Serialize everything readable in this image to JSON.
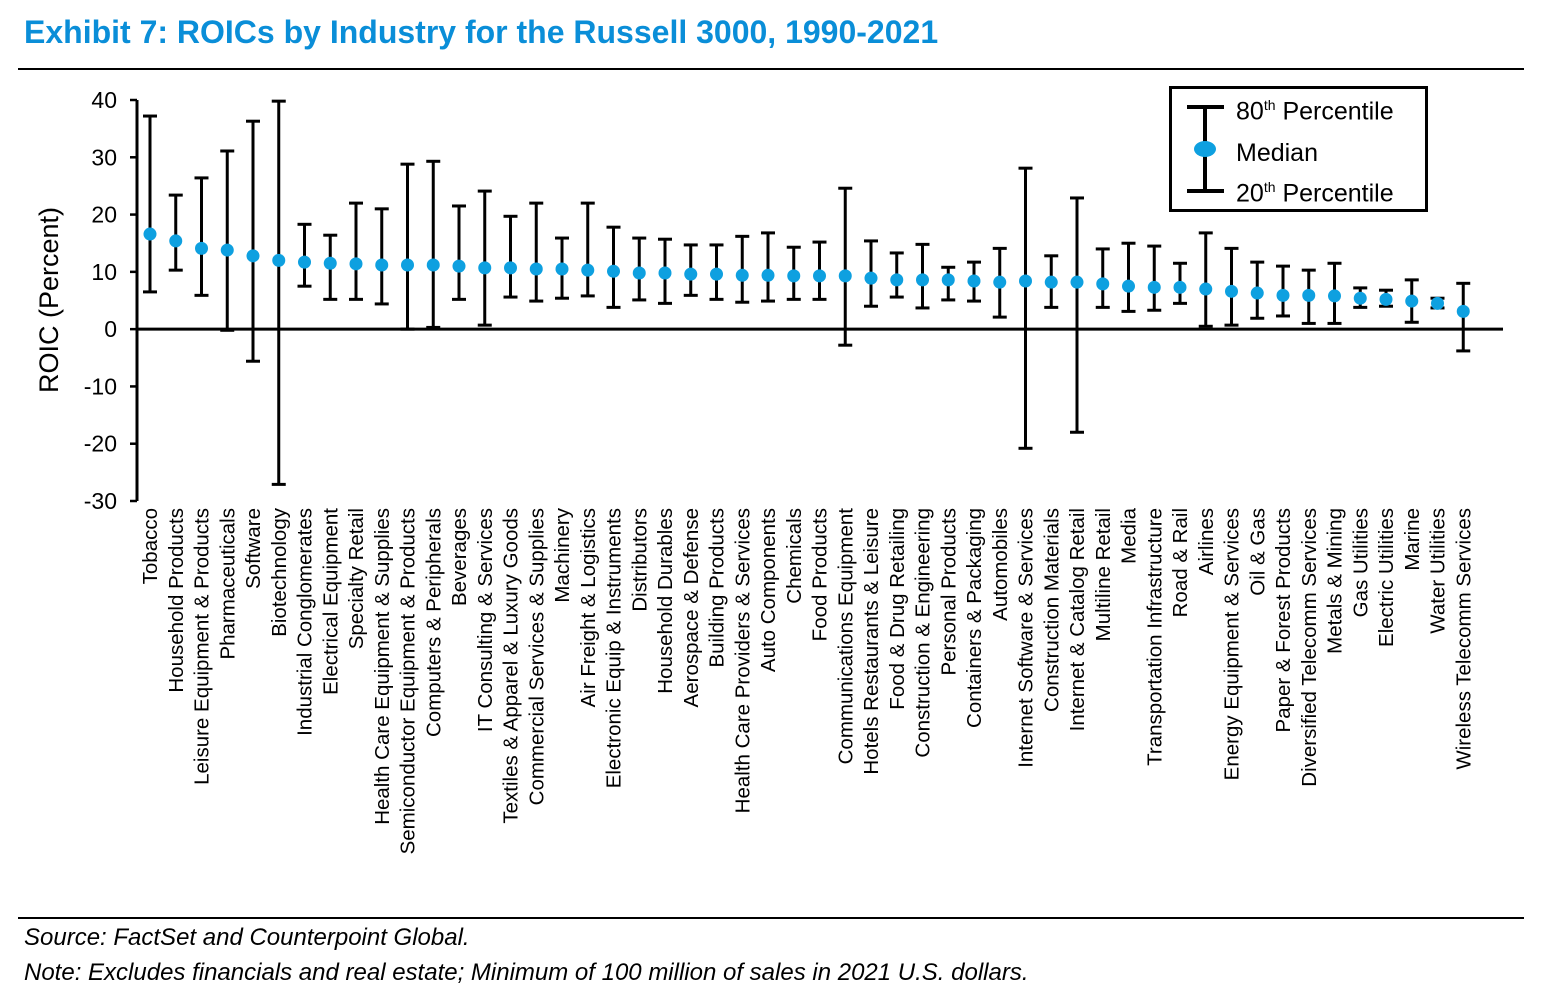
{
  "title": "Exhibit 7: ROICs by Industry for the Russell 3000, 1990-2021",
  "footer": {
    "source": "Source: FactSet and Counterpoint Global.",
    "note": "Note: Excludes financials and real estate; Minimum of 100 million of sales in 2021 U.S. dollars."
  },
  "legend": {
    "p80_num": "80",
    "p80_sup": "th",
    "p80_text": " Percentile",
    "median": "Median",
    "p20_num": "20",
    "p20_sup": "th",
    "p20_text": " Percentile"
  },
  "colors": {
    "title": "#0a8ed8",
    "median": "#0ea0e0",
    "bars": "#000000"
  },
  "chart_data": {
    "type": "scatter",
    "title": "Exhibit 7: ROICs by Industry for the Russell 3000, 1990-2021",
    "xlabel": "",
    "ylabel": "ROIC (Percent)",
    "ylim": [
      -30,
      40
    ],
    "yticks": [
      40,
      30,
      20,
      10,
      0,
      -10,
      -20,
      -30
    ],
    "grid": false,
    "legend_position": "top-right",
    "categories": [
      "Tobacco",
      "Household Products",
      "Leisure Equipment & Products",
      "Pharmaceuticals",
      "Software",
      "Biotechnology",
      "Industrial Conglomerates",
      "Electrical Equipment",
      "Specialty Retail",
      "Health Care Equipment & Supplies",
      "Semiconductor Equipment & Products",
      "Computers & Peripherals",
      "Beverages",
      "IT Consulting & Services",
      "Textiles & Apparel & Luxury Goods",
      "Commercial Services & Supplies",
      "Machinery",
      "Air Freight & Logistics",
      "Electronic Equip & Instruments",
      "Distributors",
      "Household Durables",
      "Aerospace & Defense",
      "Building Products",
      "Health Care Providers & Services",
      "Auto Components",
      "Chemicals",
      "Food Products",
      "Communications Equipment",
      "Hotels Restaurants & Leisure",
      "Food & Drug Retailing",
      "Construction & Engineering",
      "Personal Products",
      "Containers & Packaging",
      "Automobiles",
      "Internet Software & Services",
      "Construction Materials",
      "Internet & Catalog Retail",
      "Multiline Retail",
      "Media",
      "Transportation Infrastructure",
      "Road & Rail",
      "Airlines",
      "Energy Equipment & Services",
      "Oil & Gas",
      "Paper & Forest Products",
      "Diversified Telecomm Services",
      "Metals & Mining",
      "Gas Utilities",
      "Electric Utilities",
      "Marine",
      "Water Utilities",
      "Wireless Telecomm Services"
    ],
    "series": [
      {
        "name": "Median",
        "values": [
          16.6,
          15.4,
          14.1,
          13.8,
          12.8,
          12.0,
          11.7,
          11.5,
          11.4,
          11.2,
          11.2,
          11.2,
          11.0,
          10.7,
          10.7,
          10.5,
          10.5,
          10.3,
          10.1,
          9.8,
          9.8,
          9.6,
          9.6,
          9.4,
          9.4,
          9.3,
          9.3,
          9.3,
          8.9,
          8.6,
          8.6,
          8.6,
          8.4,
          8.2,
          8.4,
          8.2,
          8.2,
          7.9,
          7.5,
          7.3,
          7.3,
          7.0,
          6.6,
          6.3,
          5.9,
          5.9,
          5.8,
          5.4,
          5.2,
          4.9,
          4.5,
          3.1
        ]
      },
      {
        "name": "80th Percentile",
        "values": [
          37.2,
          23.4,
          26.4,
          31.1,
          36.3,
          39.8,
          18.3,
          16.4,
          22.0,
          21.0,
          28.8,
          29.3,
          21.5,
          24.1,
          19.7,
          22.0,
          15.9,
          22.0,
          17.8,
          15.9,
          15.7,
          14.7,
          14.7,
          16.2,
          16.8,
          14.3,
          15.2,
          24.6,
          15.4,
          13.3,
          14.8,
          10.8,
          11.7,
          14.1,
          28.1,
          12.8,
          22.9,
          14.0,
          15.0,
          14.5,
          11.5,
          16.8,
          14.1,
          11.7,
          11.0,
          10.3,
          11.5,
          7.2,
          6.8,
          8.6,
          5.4,
          8.0
        ]
      },
      {
        "name": "20th Percentile",
        "values": [
          6.5,
          10.3,
          5.9,
          -0.2,
          -5.6,
          -27.1,
          7.5,
          5.2,
          5.2,
          4.4,
          0.0,
          0.3,
          5.2,
          0.7,
          5.6,
          4.9,
          5.4,
          5.8,
          3.8,
          5.1,
          4.5,
          5.9,
          5.2,
          4.7,
          4.9,
          5.2,
          5.2,
          -2.8,
          4.0,
          5.6,
          3.7,
          5.1,
          4.9,
          2.1,
          -20.8,
          3.8,
          -18.0,
          3.8,
          3.1,
          3.3,
          4.5,
          0.5,
          0.7,
          1.9,
          2.3,
          1.0,
          1.0,
          3.8,
          4.0,
          1.2,
          3.7,
          -3.8
        ]
      }
    ]
  }
}
